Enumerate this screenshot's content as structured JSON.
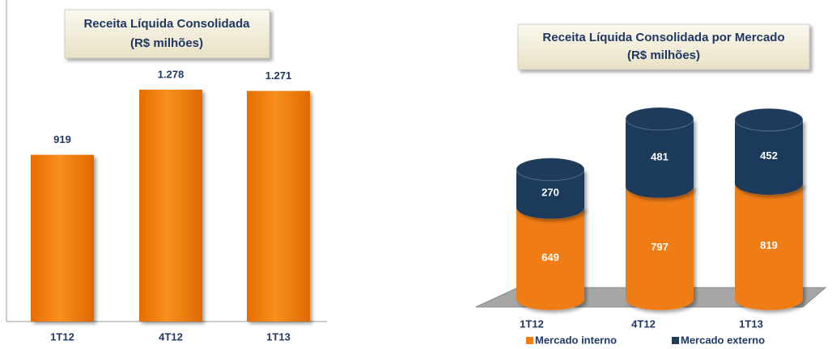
{
  "charts": [
    {
      "chart_data": {
        "type": "bar",
        "title": [
          "Receita Líquida Consolidada",
          "(R$ milhões)"
        ],
        "categories": [
          "1T12",
          "4T12",
          "1T13"
        ],
        "values": [
          919,
          1278,
          1271
        ],
        "value_labels": [
          "919",
          "1.278",
          "1.271"
        ],
        "color": "#f07c14"
      }
    },
    {
      "chart_data": {
        "type": "stacked-cylinder",
        "title": [
          "Receita Líquida Consolidada  por Mercado",
          "(R$ milhões)"
        ],
        "categories": [
          "1T12",
          "4T12",
          "1T13"
        ],
        "series": [
          {
            "name": "Mercado interno",
            "color": "#f07c14",
            "values": [
              649,
              797,
              819
            ]
          },
          {
            "name": "Mercado externo",
            "color": "#1f3b5c",
            "values": [
              270,
              481,
              452
            ]
          }
        ]
      }
    }
  ]
}
